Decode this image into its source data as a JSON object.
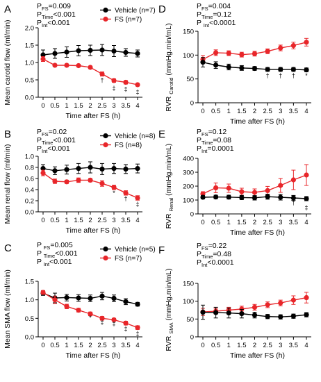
{
  "colors": {
    "vehicle": "#000000",
    "fs": "#e8262a"
  },
  "common": {
    "x": [
      "0",
      "0.5",
      "1",
      "1.5",
      "2",
      "2.5",
      "3",
      "3.5",
      "4"
    ],
    "xlabel": "Time after FS (h)"
  },
  "chart_data": [
    {
      "type": "line",
      "letter": "A",
      "xlabel": "Time after FS (h)",
      "ylabel": "Mean carotid flow (ml/min)",
      "ylabel_sub": "",
      "ylim": [
        0,
        2.0
      ],
      "yticks": [
        "0.0",
        "0.5",
        "1.0",
        "1.5",
        "2.0"
      ],
      "stats": [
        [
          "P",
          "FS",
          "=0.009"
        ],
        [
          "P",
          "Time",
          "<0.001"
        ],
        [
          "P",
          "Int",
          "<0.001"
        ]
      ],
      "legend": [
        "Vehicle (n=7)",
        "FS (n=7)"
      ],
      "x": [
        0,
        0.5,
        1,
        1.5,
        2,
        2.5,
        3,
        3.5,
        4
      ],
      "series": [
        {
          "name": "Vehicle (n=7)",
          "color_key": "vehicle",
          "values": [
            1.22,
            1.26,
            1.3,
            1.34,
            1.35,
            1.36,
            1.33,
            1.29,
            1.26
          ],
          "errors": [
            0.14,
            0.14,
            0.15,
            0.15,
            0.15,
            0.16,
            0.16,
            0.11,
            0.1
          ]
        },
        {
          "name": "FS (n=7)",
          "color_key": "fs",
          "values": [
            1.1,
            0.92,
            0.92,
            0.91,
            0.86,
            0.67,
            0.48,
            0.43,
            0.36
          ],
          "errors": [
            0.07,
            0.04,
            0.04,
            0.04,
            0.04,
            0.06,
            0.05,
            0.05,
            0.04
          ]
        }
      ],
      "annotations": [
        {
          "x": 2.5,
          "y": 0.49,
          "text": "†"
        },
        {
          "x": 3,
          "y": 0.26,
          "text": "‡"
        },
        {
          "x": 3.5,
          "y": 0.23,
          "text": "‡"
        },
        {
          "x": 4,
          "y": 0.15,
          "text": "‡"
        }
      ]
    },
    {
      "type": "line",
      "letter": "B",
      "xlabel": "Time after FS (h)",
      "ylabel": "Mean renal flow (ml/min)",
      "ylabel_sub": "",
      "ylim": [
        0,
        1.0
      ],
      "yticks": [
        "0.0",
        "0.2",
        "0.4",
        "0.6",
        "0.8",
        "1.0"
      ],
      "stats": [
        [
          "P",
          "FS",
          "=0.02"
        ],
        [
          "P",
          "Time",
          "<0.001"
        ],
        [
          "P",
          "Int",
          "<0.001"
        ]
      ],
      "legend": [
        "Vehicle (n=8)",
        "FS (n=8)"
      ],
      "x": [
        0,
        0.5,
        1,
        1.5,
        2,
        2.5,
        3,
        3.5,
        4
      ],
      "series": [
        {
          "name": "Vehicle (n=8)",
          "color_key": "vehicle",
          "values": [
            0.78,
            0.74,
            0.76,
            0.78,
            0.8,
            0.77,
            0.78,
            0.77,
            0.78
          ],
          "errors": [
            0.07,
            0.07,
            0.08,
            0.09,
            0.1,
            0.1,
            0.09,
            0.08,
            0.08
          ]
        },
        {
          "name": "FS (n=8)",
          "color_key": "fs",
          "values": [
            0.7,
            0.55,
            0.54,
            0.57,
            0.57,
            0.51,
            0.44,
            0.34,
            0.25
          ],
          "errors": [
            0.05,
            0.04,
            0.03,
            0.04,
            0.03,
            0.05,
            0.04,
            0.04,
            0.04
          ]
        }
      ],
      "annotations": [
        {
          "x": 3,
          "y": 0.34,
          "text": "*"
        },
        {
          "x": 3.5,
          "y": 0.24,
          "text": "†"
        },
        {
          "x": 4,
          "y": 0.14,
          "text": "‡"
        }
      ]
    },
    {
      "type": "line",
      "letter": "C",
      "xlabel": "Time after FS (h)",
      "ylabel": "Mean SMA flow (ml/min)",
      "ylabel_sub": "",
      "ylim": [
        0,
        1.5
      ],
      "yticks": [
        "0.0",
        "0.5",
        "1.0",
        "1.5"
      ],
      "stats": [
        [
          "P ",
          "FS",
          "=0.005"
        ],
        [
          "P ",
          "Time",
          "<0.001"
        ],
        [
          "P ",
          "Int",
          "<0.001"
        ]
      ],
      "legend": [
        "Vehicle (n=5)",
        "FS (n=7)"
      ],
      "x": [
        0,
        0.5,
        1,
        1.5,
        2,
        2.5,
        3,
        3.5,
        4
      ],
      "series": [
        {
          "name": "Vehicle (n=5)",
          "color_key": "vehicle",
          "values": [
            1.18,
            1.05,
            1.06,
            1.05,
            1.04,
            1.1,
            1.04,
            0.95,
            0.88
          ],
          "errors": [
            0.06,
            0.13,
            0.09,
            0.09,
            0.09,
            0.1,
            0.09,
            0.08,
            0.05
          ]
        },
        {
          "name": "FS (n=7)",
          "color_key": "fs",
          "values": [
            1.2,
            1.0,
            0.82,
            0.72,
            0.62,
            0.5,
            0.46,
            0.37,
            0.25
          ],
          "errors": [
            0.05,
            0.1,
            0.06,
            0.05,
            0.05,
            0.05,
            0.04,
            0.05,
            0.05
          ]
        }
      ],
      "annotations": [
        {
          "x": 2,
          "y": 0.52,
          "text": "*"
        },
        {
          "x": 2.5,
          "y": 0.39,
          "text": "‡"
        },
        {
          "x": 3,
          "y": 0.36,
          "text": "‡"
        },
        {
          "x": 3.5,
          "y": 0.22,
          "text": "‡"
        },
        {
          "x": 4,
          "y": 0.08,
          "text": "‡"
        }
      ]
    },
    {
      "type": "line",
      "letter": "D",
      "xlabel": "Time after FS (h)",
      "ylabel": "RVR",
      "ylabel_sub": "Carotid",
      "ylabel_unit": "(mmHg.min/mL)",
      "ylim": [
        0,
        150
      ],
      "yticks": [
        "0",
        "50",
        "100",
        "150"
      ],
      "stats": [
        [
          "P",
          "FS",
          "=0.004"
        ],
        [
          "P",
          "Time",
          "=0.12"
        ],
        [
          "P ",
          "Int",
          "<0.0001"
        ]
      ],
      "legend": [],
      "x": [
        0,
        0.5,
        1,
        1.5,
        2,
        2.5,
        3,
        3.5,
        4
      ],
      "series": [
        {
          "name": "",
          "color_key": "fs",
          "values": [
            91,
            105,
            104,
            101,
            103,
            108,
            115,
            120,
            127
          ],
          "errors": [
            8,
            6,
            5,
            5,
            5,
            5,
            6,
            7,
            8
          ]
        },
        {
          "name": "",
          "color_key": "vehicle",
          "values": [
            85,
            79,
            75,
            73,
            72,
            70,
            70,
            70,
            69
          ],
          "errors": [
            10,
            7,
            6,
            5,
            4,
            4,
            4,
            4,
            4
          ]
        }
      ],
      "annotations": [
        {
          "x": 2.5,
          "y": 57,
          "text": "†"
        },
        {
          "x": 3,
          "y": 57,
          "text": "†"
        },
        {
          "x": 3.5,
          "y": 57,
          "text": "†"
        },
        {
          "x": 4,
          "y": 57,
          "text": "*"
        }
      ]
    },
    {
      "type": "line",
      "letter": "E",
      "xlabel": "Time after FS (h)",
      "ylabel": "RVR",
      "ylabel_sub": "Renal",
      "ylabel_unit": "(mmHg.min/mL)",
      "ylim": [
        0,
        400
      ],
      "yticks": [
        "0",
        "100",
        "200",
        "300",
        "400"
      ],
      "stats": [
        [
          "P",
          "FS",
          "=0.12"
        ],
        [
          "P",
          "Time",
          "=0.08"
        ],
        [
          "P",
          "Int",
          "=0.0001"
        ]
      ],
      "legend": [],
      "x": [
        0,
        0.5,
        1,
        1.5,
        2,
        2.5,
        3,
        3.5,
        4
      ],
      "series": [
        {
          "name": "",
          "color_key": "fs",
          "values": [
            145,
            188,
            185,
            160,
            155,
            168,
            205,
            245,
            280
          ],
          "errors": [
            15,
            35,
            30,
            25,
            25,
            30,
            50,
            70,
            75
          ]
        },
        {
          "name": "",
          "color_key": "vehicle",
          "values": [
            120,
            122,
            121,
            118,
            116,
            124,
            120,
            115,
            110
          ],
          "errors": [
            12,
            13,
            14,
            15,
            16,
            18,
            20,
            18,
            15
          ]
        }
      ],
      "annotations": [
        {
          "x": 3.5,
          "y": 80,
          "text": "†"
        },
        {
          "x": 4,
          "y": 45,
          "text": "‡"
        }
      ]
    },
    {
      "type": "line",
      "letter": "F",
      "xlabel": "Time after FS (h)",
      "ylabel": "RVR",
      "ylabel_sub": "SMA",
      "ylabel_unit": "(mmHg.min/mL)",
      "ylim": [
        0,
        150
      ],
      "yticks": [
        "0",
        "50",
        "100",
        "150"
      ],
      "stats": [
        [
          "P",
          "FS",
          "=0.22"
        ],
        [
          "P",
          "Time",
          "=0.48"
        ],
        [
          "P",
          "Int",
          "<0.0001"
        ]
      ],
      "legend": [],
      "x": [
        0,
        0.5,
        1,
        1.5,
        2,
        2.5,
        3,
        3.5,
        4
      ],
      "series": [
        {
          "name": "",
          "color_key": "fs",
          "values": [
            70,
            72,
            75,
            78,
            83,
            90,
            95,
            103,
            110
          ],
          "errors": [
            10,
            8,
            8,
            8,
            8,
            8,
            8,
            12,
            15
          ]
        },
        {
          "name": "",
          "color_key": "vehicle",
          "values": [
            69,
            68,
            67,
            65,
            61,
            57,
            56,
            58,
            62
          ],
          "errors": [
            20,
            15,
            14,
            12,
            8,
            6,
            6,
            6,
            6
          ]
        }
      ],
      "annotations": []
    }
  ]
}
